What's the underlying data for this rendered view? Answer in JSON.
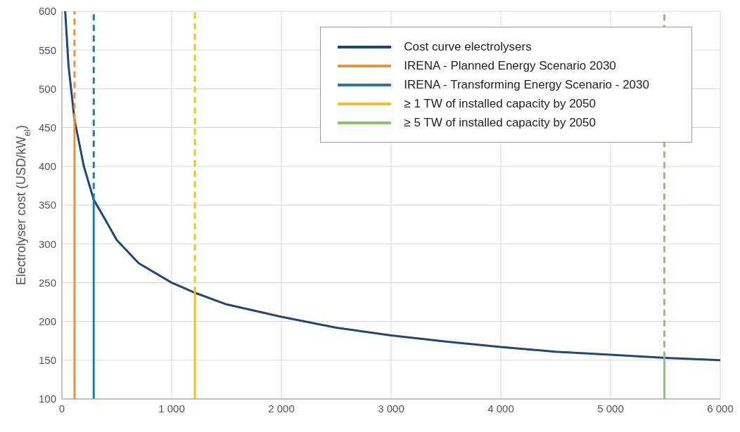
{
  "chart_data": {
    "type": "line",
    "ylabel": "Electrolyser cost (USD/kW$_{el}$)",
    "xlim": [
      0,
      6000
    ],
    "xticks": [
      0,
      {
        "value": 1000,
        "label": "1 000"
      },
      {
        "value": 2000,
        "label": "2 000"
      },
      {
        "value": 3000,
        "label": "3 000"
      },
      {
        "value": 4000,
        "label": "4 000"
      },
      {
        "value": 5000,
        "label": "5 000"
      },
      {
        "value": 6000,
        "label": "6 000"
      }
    ],
    "ylim": [
      100,
      600
    ],
    "yticks": [
      100,
      150,
      200,
      250,
      300,
      350,
      400,
      450,
      500,
      550,
      600
    ],
    "grid": true,
    "legend": "top right",
    "line_style": "solid",
    "series": [
      {
        "name": "Cost curve electrolysers",
        "color": "#1f4778",
        "x": [
          30,
          60,
          115,
          200,
          290,
          400,
          500,
          700,
          1000,
          1212,
          1500,
          2000,
          2500,
          3000,
          3500,
          4000,
          4500,
          5000,
          5500,
          6000
        ],
        "values": [
          600,
          530,
          460,
          400,
          357,
          330,
          305,
          275,
          250,
          237,
          222,
          206,
          192,
          182,
          174,
          167,
          161,
          157,
          153,
          150
        ]
      },
      {
        "name": "IRENA - Planned Energy Scenario 2030",
        "color": "#e8923a",
        "x": [
          115,
          115
        ],
        "values": [
          100,
          460
        ]
      },
      {
        "color": "#e8923a",
        "x": [
          115,
          115
        ],
        "values": [
          460,
          600
        ],
        "line_style": "dashed"
      },
      {
        "name": "IRENA - Transforming Energy Scenario - 2030",
        "color": "#2a77a8",
        "x": [
          290,
          290
        ],
        "values": [
          100,
          357
        ]
      },
      {
        "color": "#2a77a8",
        "x": [
          290,
          290
        ],
        "values": [
          357,
          600
        ],
        "line_style": "dashed"
      },
      {
        "name": "≥ 1 TW of installed capacity by 2050",
        "color": "#f5c022",
        "x": [
          1212,
          1212
        ],
        "values": [
          100,
          237
        ]
      },
      {
        "color": "#f5c022",
        "x": [
          1212,
          1212
        ],
        "values": [
          237,
          600
        ],
        "line_style": "dashed"
      },
      {
        "name": "≥ 5 TW of installed capacity by 2050",
        "color": "#8cc66a",
        "x": [
          5490,
          5490
        ],
        "values": [
          100,
          153
        ]
      },
      {
        "color": "#8cc66a",
        "x": [
          5490,
          5490
        ],
        "values": [
          153,
          600
        ],
        "line_style": "dashed"
      }
    ]
  }
}
